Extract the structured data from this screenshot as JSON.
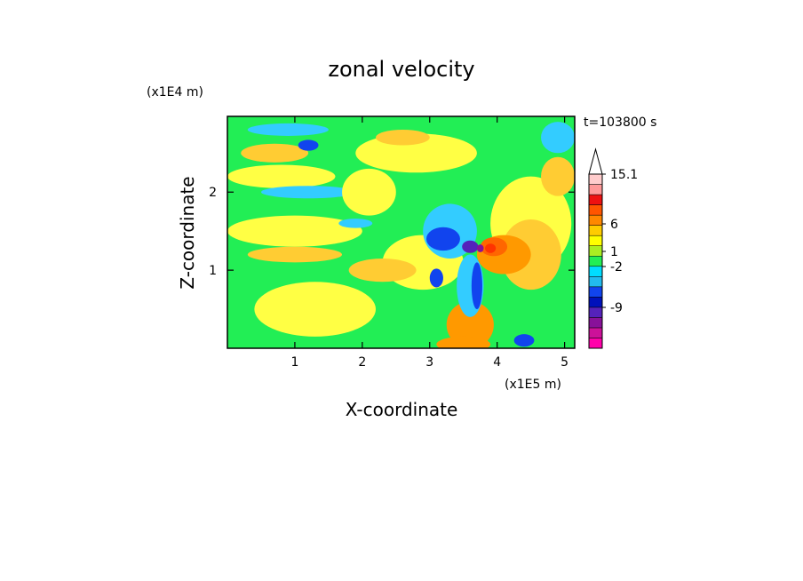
{
  "chart_data": {
    "type": "heatmap",
    "title": "zonal velocity",
    "xlabel": "X-coordinate",
    "ylabel": "Z-coordinate",
    "x_unit": "(x1E5 m)",
    "y_unit": "(x1E4 m)",
    "time_label": "t=103800 s",
    "xlim": [
      0,
      5.15
    ],
    "ylim": [
      0,
      2.97
    ],
    "x_ticks": [
      "1",
      "2",
      "3",
      "4",
      "5"
    ],
    "x_tick_values": [
      1,
      2,
      3,
      4,
      5
    ],
    "y_ticks": [
      "1",
      "2"
    ],
    "y_tick_values": [
      1,
      2
    ],
    "colorbar": {
      "levels_labeled": [
        "15.1",
        "6",
        "1",
        "-2",
        "-9"
      ],
      "label_values": [
        15.1,
        6,
        1,
        -2,
        -9
      ],
      "colors": [
        "#ff00aa",
        "#cc1199",
        "#881199",
        "#5522bb",
        "#0011bb",
        "#1144ee",
        "#22bbee",
        "#00ddff",
        "#22ee55",
        "#aaee22",
        "#ffff00",
        "#ffcc00",
        "#ff8800",
        "#ff5500",
        "#ee1111",
        "#ff9999",
        "#ffcccc"
      ],
      "extend": "max"
    },
    "colors": {
      "background": "#22ee55",
      "features": [
        {
          "color": "#ffff44",
          "cx": 1.3,
          "cz": 0.5,
          "rx": 0.9,
          "rz": 0.35
        },
        {
          "color": "#ffff44",
          "cx": 1.0,
          "cz": 1.5,
          "rx": 1.0,
          "rz": 0.2
        },
        {
          "color": "#ffff44",
          "cx": 0.8,
          "cz": 2.2,
          "rx": 0.8,
          "rz": 0.15
        },
        {
          "color": "#ffff44",
          "cx": 2.8,
          "cz": 2.5,
          "rx": 0.9,
          "rz": 0.25
        },
        {
          "color": "#ffff44",
          "cx": 4.5,
          "cz": 1.6,
          "rx": 0.6,
          "rz": 0.6
        },
        {
          "color": "#ffff44",
          "cx": 2.9,
          "cz": 1.1,
          "rx": 0.6,
          "rz": 0.35
        },
        {
          "color": "#ffcc33",
          "cx": 0.7,
          "cz": 2.5,
          "rx": 0.5,
          "rz": 0.12
        },
        {
          "color": "#ffcc33",
          "cx": 1.0,
          "cz": 1.2,
          "rx": 0.7,
          "rz": 0.1
        },
        {
          "color": "#ffcc33",
          "cx": 2.6,
          "cz": 2.7,
          "rx": 0.4,
          "rz": 0.1
        },
        {
          "color": "#ffcc33",
          "cx": 4.5,
          "cz": 1.2,
          "rx": 0.45,
          "rz": 0.45
        },
        {
          "color": "#ff9900",
          "cx": 3.6,
          "cz": 0.3,
          "rx": 0.35,
          "rz": 0.3
        },
        {
          "color": "#ff9900",
          "cx": 4.1,
          "cz": 1.2,
          "rx": 0.4,
          "rz": 0.25
        },
        {
          "color": "#ff6600",
          "cx": 3.95,
          "cz": 1.3,
          "rx": 0.2,
          "rz": 0.12
        },
        {
          "color": "#ff3300",
          "cx": 3.9,
          "cz": 1.28,
          "rx": 0.08,
          "rz": 0.06
        },
        {
          "color": "#ff9900",
          "cx": 3.5,
          "cz": 0.05,
          "rx": 0.4,
          "rz": 0.1
        },
        {
          "color": "#33ccff",
          "cx": 1.2,
          "cz": 2.0,
          "rx": 0.7,
          "rz": 0.08
        },
        {
          "color": "#33ccff",
          "cx": 3.3,
          "cz": 1.5,
          "rx": 0.4,
          "rz": 0.35
        },
        {
          "color": "#33ccff",
          "cx": 0.9,
          "cz": 2.8,
          "rx": 0.6,
          "rz": 0.08
        },
        {
          "color": "#33ccff",
          "cx": 4.9,
          "cz": 2.7,
          "rx": 0.25,
          "rz": 0.2
        },
        {
          "color": "#33ccff",
          "cx": 3.6,
          "cz": 0.8,
          "rx": 0.2,
          "rz": 0.4
        },
        {
          "color": "#1144ee",
          "cx": 3.2,
          "cz": 1.4,
          "rx": 0.25,
          "rz": 0.15
        },
        {
          "color": "#1144ee",
          "cx": 3.7,
          "cz": 0.8,
          "rx": 0.08,
          "rz": 0.3
        },
        {
          "color": "#1144ee",
          "cx": 1.2,
          "cz": 2.6,
          "rx": 0.15,
          "rz": 0.07
        },
        {
          "color": "#1144ee",
          "cx": 4.4,
          "cz": 0.1,
          "rx": 0.15,
          "rz": 0.08
        },
        {
          "color": "#1144ee",
          "cx": 3.1,
          "cz": 0.9,
          "rx": 0.1,
          "rz": 0.12
        },
        {
          "color": "#5522bb",
          "cx": 3.6,
          "cz": 1.3,
          "rx": 0.12,
          "rz": 0.08
        },
        {
          "color": "#881199",
          "cx": 3.75,
          "cz": 1.28,
          "rx": 0.05,
          "rz": 0.05
        },
        {
          "color": "#ffcc33",
          "cx": 2.3,
          "cz": 1.0,
          "rx": 0.5,
          "rz": 0.15
        },
        {
          "color": "#ffff44",
          "cx": 2.1,
          "cz": 2.0,
          "rx": 0.4,
          "rz": 0.3
        },
        {
          "color": "#33ccff",
          "cx": 1.9,
          "cz": 1.6,
          "rx": 0.25,
          "rz": 0.06
        },
        {
          "color": "#ffcc33",
          "cx": 4.9,
          "cz": 2.2,
          "rx": 0.25,
          "rz": 0.25
        }
      ]
    }
  }
}
